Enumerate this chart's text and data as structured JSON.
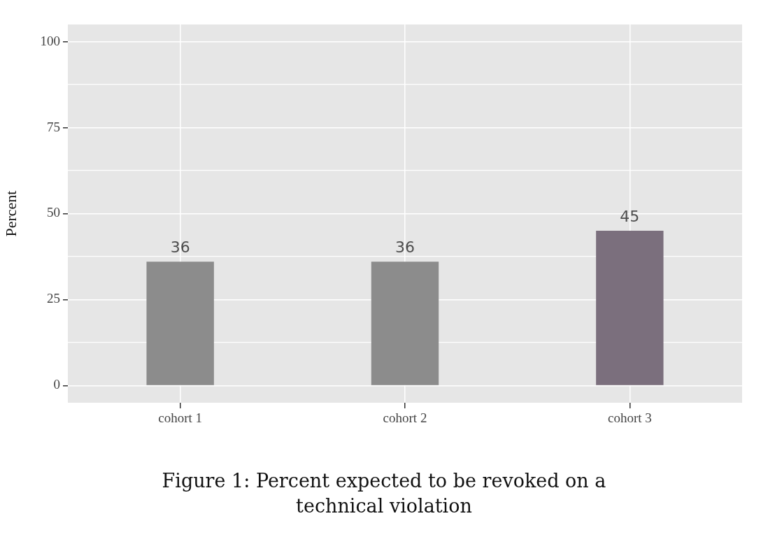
{
  "chart_data": {
    "type": "bar",
    "ylabel": "Percent",
    "categories": [
      "cohort 1",
      "cohort 2",
      "cohort 3"
    ],
    "values": [
      36,
      36,
      45
    ],
    "colors": [
      "#8c8c8c",
      "#8c8c8c",
      "#7b6f7d"
    ],
    "ylim": [
      -5,
      105
    ],
    "yticks": [
      0,
      {
        "value": 12.5,
        "label": null
      },
      25,
      {
        "value": 37.5,
        "label": null
      },
      50,
      {
        "value": 62.5,
        "label": null
      },
      75,
      {
        "value": 87.5,
        "label": null
      },
      100
    ],
    "grid": true,
    "legend": false,
    "data_labels": true,
    "annotations": [
      "Figure 1: Percent expected to be revoked on a technical violation"
    ]
  }
}
